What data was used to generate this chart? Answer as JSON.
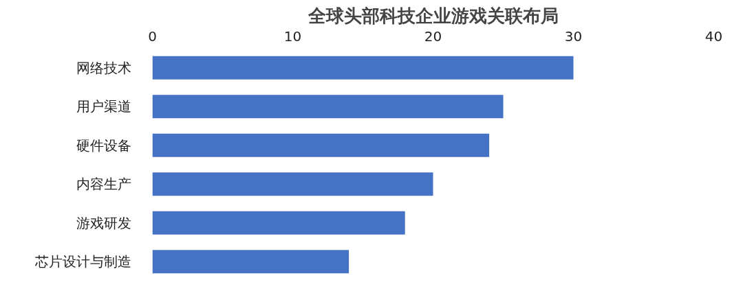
{
  "chart_data": {
    "type": "bar",
    "orientation": "horizontal",
    "title": "全球头部科技企业游戏关联布局",
    "categories": [
      "网络技术",
      "用户渠道",
      "硬件设备",
      "内容生产",
      "游戏研发",
      "芯片设计与制造"
    ],
    "values": [
      30,
      25,
      24,
      20,
      18,
      14
    ],
    "color": "#4472c4",
    "xlim": [
      0,
      40
    ],
    "xticks": [
      0,
      10,
      20,
      30,
      40
    ],
    "grid": false
  }
}
